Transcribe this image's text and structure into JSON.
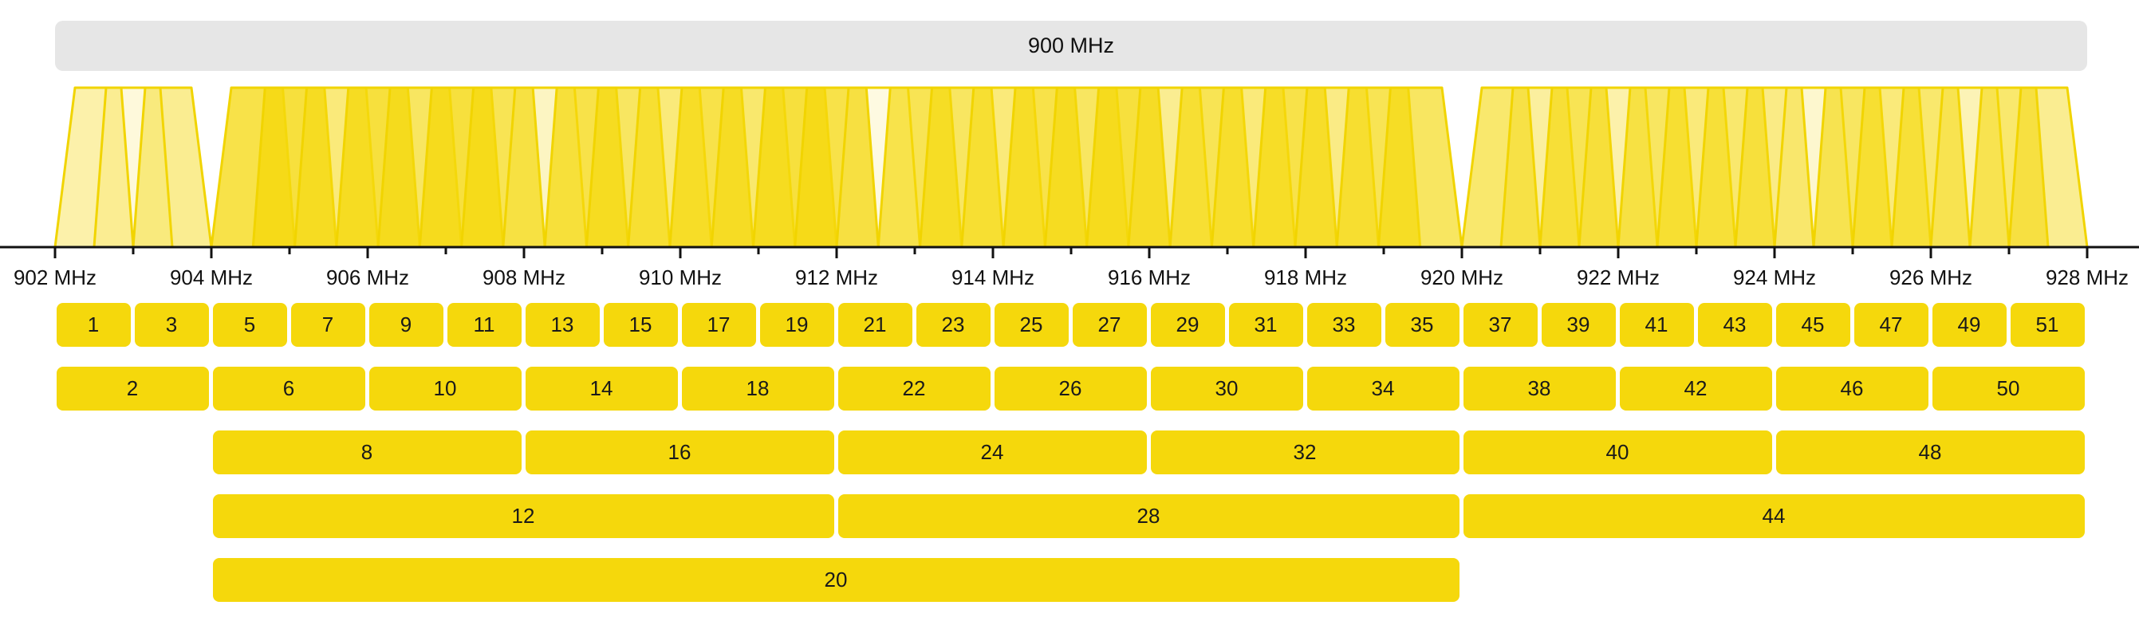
{
  "band_label": "900 MHz",
  "axis": {
    "unit": "MHz",
    "min": 902,
    "max": 928,
    "ticks": [
      "902 MHz",
      "904 MHz",
      "906 MHz",
      "908 MHz",
      "910 MHz",
      "912 MHz",
      "914 MHz",
      "916 MHz",
      "918 MHz",
      "920 MHz",
      "922 MHz",
      "924 MHz",
      "926 MHz",
      "928 MHz"
    ]
  },
  "colors": {
    "channel_fill": "#f5d80c",
    "channel_stroke": "#f1d400",
    "band_bar": "#e6e6e6",
    "axis": "#111111"
  },
  "spectrum_groups": [
    {
      "start": 902,
      "end": 904,
      "levels": [
        0.35,
        0.15,
        0.45
      ]
    },
    {
      "start": 904,
      "end": 920,
      "levels": [
        0.75,
        0.8,
        0.55,
        0.8,
        0.65,
        0.8,
        0.7,
        0.25,
        0.75,
        0.65,
        0.55,
        0.75,
        0.6,
        0.8,
        0.75,
        0.12,
        0.7,
        0.65,
        0.55,
        0.75,
        0.65,
        0.8,
        0.45,
        0.7,
        0.55,
        0.75,
        0.5,
        0.7,
        0.65
      ]
    },
    {
      "start": 920,
      "end": 928,
      "levels": [
        0.6,
        0.4,
        0.7,
        0.35,
        0.65,
        0.55,
        0.6,
        0.5,
        0.2,
        0.65,
        0.55,
        0.6,
        0.3,
        0.6,
        0.45
      ]
    }
  ],
  "channel_rows": [
    {
      "width_mhz": 1,
      "channels": [
        {
          "label": "1",
          "start": 902,
          "end": 903
        },
        {
          "label": "3",
          "start": 903,
          "end": 904
        },
        {
          "label": "5",
          "start": 904,
          "end": 905
        },
        {
          "label": "7",
          "start": 905,
          "end": 906
        },
        {
          "label": "9",
          "start": 906,
          "end": 907
        },
        {
          "label": "11",
          "start": 907,
          "end": 908
        },
        {
          "label": "13",
          "start": 908,
          "end": 909
        },
        {
          "label": "15",
          "start": 909,
          "end": 910
        },
        {
          "label": "17",
          "start": 910,
          "end": 911
        },
        {
          "label": "19",
          "start": 911,
          "end": 912
        },
        {
          "label": "21",
          "start": 912,
          "end": 913
        },
        {
          "label": "23",
          "start": 913,
          "end": 914
        },
        {
          "label": "25",
          "start": 914,
          "end": 915
        },
        {
          "label": "27",
          "start": 915,
          "end": 916
        },
        {
          "label": "29",
          "start": 916,
          "end": 917
        },
        {
          "label": "31",
          "start": 917,
          "end": 918
        },
        {
          "label": "33",
          "start": 918,
          "end": 919
        },
        {
          "label": "35",
          "start": 919,
          "end": 920
        },
        {
          "label": "37",
          "start": 920,
          "end": 921
        },
        {
          "label": "39",
          "start": 921,
          "end": 922
        },
        {
          "label": "41",
          "start": 922,
          "end": 923
        },
        {
          "label": "43",
          "start": 923,
          "end": 924
        },
        {
          "label": "45",
          "start": 924,
          "end": 925
        },
        {
          "label": "47",
          "start": 925,
          "end": 926
        },
        {
          "label": "49",
          "start": 926,
          "end": 927
        },
        {
          "label": "51",
          "start": 927,
          "end": 928
        }
      ]
    },
    {
      "width_mhz": 2,
      "channels": [
        {
          "label": "2",
          "start": 902,
          "end": 904
        },
        {
          "label": "6",
          "start": 904,
          "end": 906
        },
        {
          "label": "10",
          "start": 906,
          "end": 908
        },
        {
          "label": "14",
          "start": 908,
          "end": 910
        },
        {
          "label": "18",
          "start": 910,
          "end": 912
        },
        {
          "label": "22",
          "start": 912,
          "end": 914
        },
        {
          "label": "26",
          "start": 914,
          "end": 916
        },
        {
          "label": "30",
          "start": 916,
          "end": 918
        },
        {
          "label": "34",
          "start": 918,
          "end": 920
        },
        {
          "label": "38",
          "start": 920,
          "end": 922
        },
        {
          "label": "42",
          "start": 922,
          "end": 924
        },
        {
          "label": "46",
          "start": 924,
          "end": 926
        },
        {
          "label": "50",
          "start": 926,
          "end": 928
        }
      ]
    },
    {
      "width_mhz": 4,
      "channels": [
        {
          "label": "8",
          "start": 904,
          "end": 908
        },
        {
          "label": "16",
          "start": 908,
          "end": 912
        },
        {
          "label": "24",
          "start": 912,
          "end": 916
        },
        {
          "label": "32",
          "start": 916,
          "end": 920
        },
        {
          "label": "40",
          "start": 920,
          "end": 924
        },
        {
          "label": "48",
          "start": 924,
          "end": 928
        }
      ]
    },
    {
      "width_mhz": 8,
      "channels": [
        {
          "label": "12",
          "start": 904,
          "end": 912
        },
        {
          "label": "28",
          "start": 912,
          "end": 920
        },
        {
          "label": "44",
          "start": 920,
          "end": 928
        }
      ]
    },
    {
      "width_mhz": 16,
      "channels": [
        {
          "label": "20",
          "start": 904,
          "end": 920
        }
      ]
    }
  ]
}
